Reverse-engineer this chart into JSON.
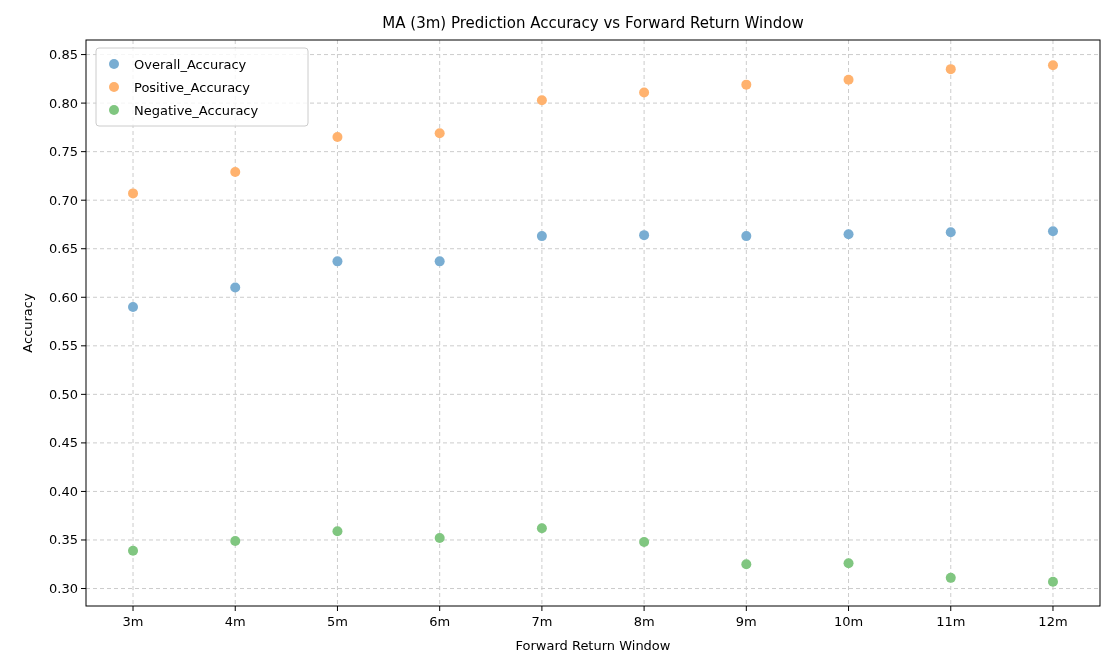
{
  "chart_data": {
    "type": "scatter",
    "title": "MA (3m) Prediction Accuracy vs Forward Return Window",
    "xlabel": "Forward Return Window",
    "ylabel": "Accuracy",
    "categories": [
      "3m",
      "4m",
      "5m",
      "6m",
      "7m",
      "8m",
      "9m",
      "10m",
      "11m",
      "12m"
    ],
    "series": [
      {
        "name": "Overall_Accuracy",
        "color": "#79add2",
        "values": [
          0.59,
          0.61,
          0.637,
          0.637,
          0.663,
          0.664,
          0.663,
          0.665,
          0.667,
          0.668
        ]
      },
      {
        "name": "Positive_Accuracy",
        "color": "#ffb26e",
        "values": [
          0.707,
          0.729,
          0.765,
          0.769,
          0.803,
          0.811,
          0.819,
          0.824,
          0.835,
          0.839
        ]
      },
      {
        "name": "Negative_Accuracy",
        "color": "#80c680",
        "values": [
          0.339,
          0.349,
          0.359,
          0.352,
          0.362,
          0.348,
          0.325,
          0.326,
          0.311,
          0.307
        ]
      }
    ],
    "ylim": [
      0.282,
      0.865
    ],
    "yticks": [
      {
        "value": 0.3,
        "label": "0.30"
      },
      0.35,
      {
        "value": 0.4,
        "label": "0.40"
      },
      0.45,
      {
        "value": 0.5,
        "label": "0.50"
      },
      0.55,
      {
        "value": 0.6,
        "label": "0.60"
      },
      0.65,
      {
        "value": 0.7,
        "label": "0.70"
      },
      0.75,
      {
        "value": 0.8,
        "label": "0.80"
      },
      0.85
    ],
    "grid": true,
    "legend": "top left",
    "marker": "circle"
  }
}
